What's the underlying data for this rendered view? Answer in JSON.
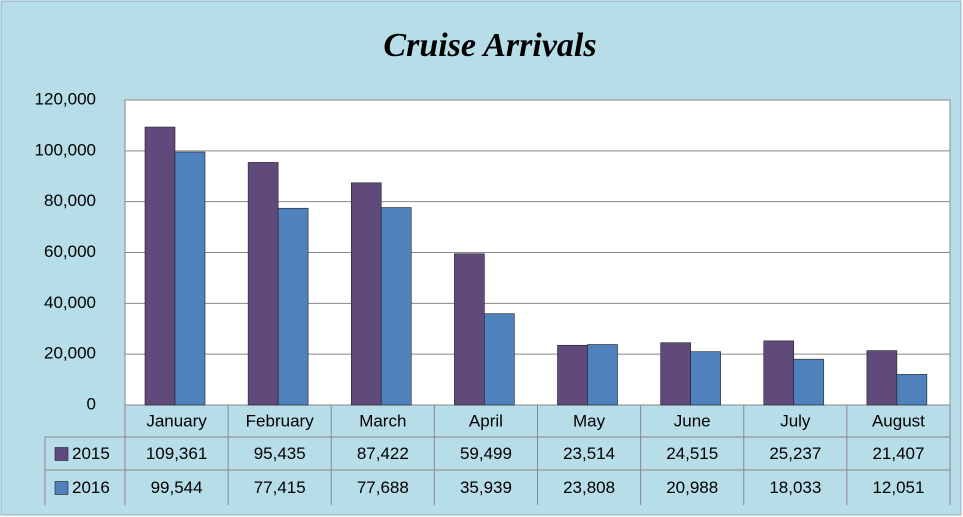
{
  "chart_data": {
    "type": "bar",
    "title": "Cruise Arrivals",
    "categories": [
      "January",
      "February",
      "March",
      "April",
      "May",
      "June",
      "July",
      "August"
    ],
    "series": [
      {
        "name": "2015",
        "color": "#604a7b",
        "values": [
          109361,
          95435,
          87422,
          59499,
          23514,
          24515,
          25237,
          21407
        ],
        "value_labels": [
          "109,361",
          "95,435",
          "87,422",
          "59,499",
          "23,514",
          "24,515",
          "25,237",
          "21,407"
        ]
      },
      {
        "name": "2016",
        "color": "#4f81bd",
        "values": [
          99544,
          77415,
          77688,
          35939,
          23808,
          20988,
          18033,
          12051
        ],
        "value_labels": [
          "99,544",
          "77,415",
          "77,688",
          "35,939",
          "23,808",
          "20,988",
          "18,033",
          "12,051"
        ]
      }
    ],
    "ylim": [
      0,
      120000
    ],
    "yticks": [
      0,
      {
        "value": 20000,
        "label": "20,000"
      },
      {
        "value": 40000,
        "label": "40,000"
      },
      {
        "value": 60000,
        "label": "60,000"
      },
      {
        "value": 80000,
        "label": "80,000"
      },
      {
        "value": 100000,
        "label": "100,000"
      },
      {
        "value": 120000,
        "label": "120,000"
      }
    ],
    "grid": true
  }
}
